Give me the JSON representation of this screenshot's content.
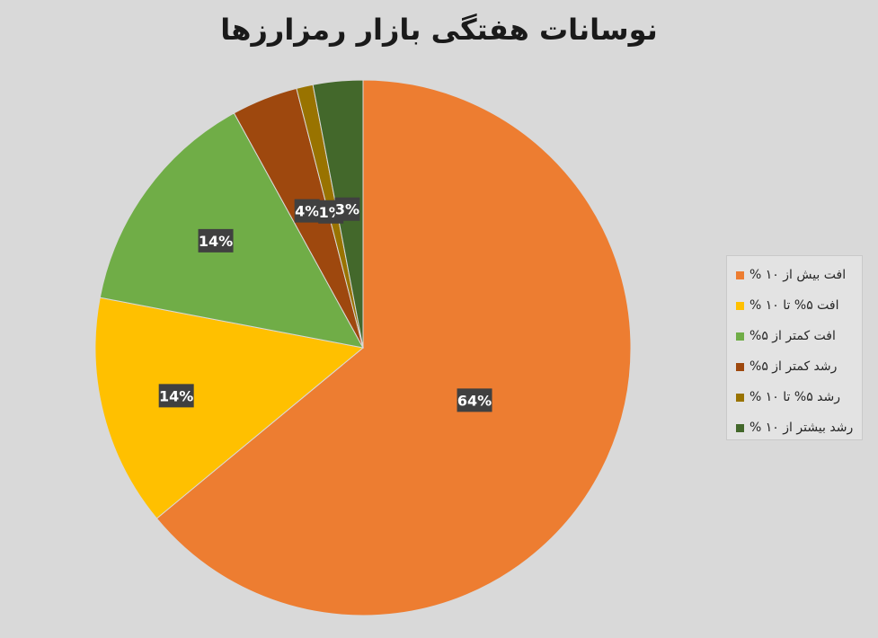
{
  "chart_data": {
    "type": "pie",
    "title": "نوسانات هفتگی بازار رمزارزها",
    "categories": [
      "افت بیش از ۱۰ %",
      "افت ۵% تا ۱۰ %",
      "افت کمتر از ۵%",
      "رشد کمتر از ۵%",
      "رشد ۵% تا ۱۰ %",
      "رشد بیشتر از ۱۰ %"
    ],
    "values": [
      64,
      14,
      14,
      4,
      1,
      3
    ],
    "data_labels": [
      "64%",
      "14%",
      "14%",
      "4%",
      "1%",
      "3%"
    ],
    "colors": [
      "#ed7d31",
      "#ffc000",
      "#70ad47",
      "#9e480e",
      "#997300",
      "#43682b"
    ],
    "legend_position": "right"
  }
}
